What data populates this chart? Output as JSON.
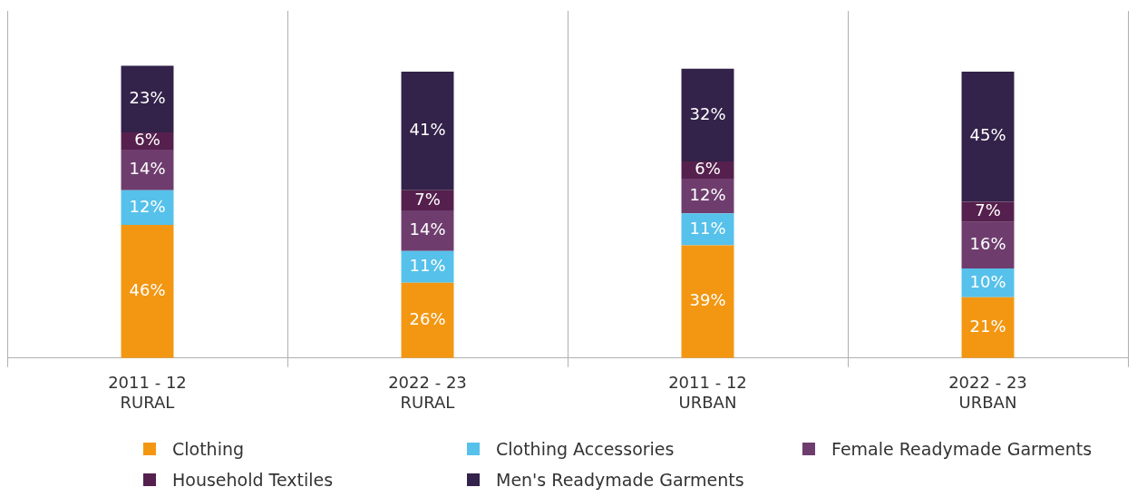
{
  "chart_data": {
    "type": "bar",
    "stacked": true,
    "grid": "x",
    "legend": "bottom",
    "categories": [
      "2011 - 12\nRURAL",
      "2022 - 23\nRURAL",
      "2011 - 12\nURBAN",
      "2022 - 23\nURBAN"
    ],
    "series": [
      {
        "name": "Clothing",
        "color": "#f39712",
        "values": [
          46,
          26,
          39,
          21
        ],
        "value_labels": [
          "46%",
          "26%",
          "39%",
          "21%"
        ]
      },
      {
        "name": "Clothing Accessories",
        "color": "#56c1ea",
        "values": [
          12,
          11,
          11,
          10
        ],
        "value_labels": [
          "12%",
          "11%",
          "11%",
          "10%"
        ]
      },
      {
        "name": "Female Readymade Garments",
        "color": "#6e3d6e",
        "values": [
          14,
          14,
          12,
          16
        ],
        "value_labels": [
          "14%",
          "14%",
          "12%",
          "16%"
        ]
      },
      {
        "name": "Household Textiles",
        "color": "#55204d",
        "values": [
          6,
          7,
          6,
          7
        ],
        "value_labels": [
          "6%",
          "7%",
          "6%",
          "7%"
        ]
      },
      {
        "name": "Men's Readymade Garments",
        "color": "#33224a",
        "values": [
          23,
          41,
          32,
          45
        ],
        "value_labels": [
          "23%",
          "41%",
          "32%",
          "45%"
        ]
      }
    ]
  }
}
